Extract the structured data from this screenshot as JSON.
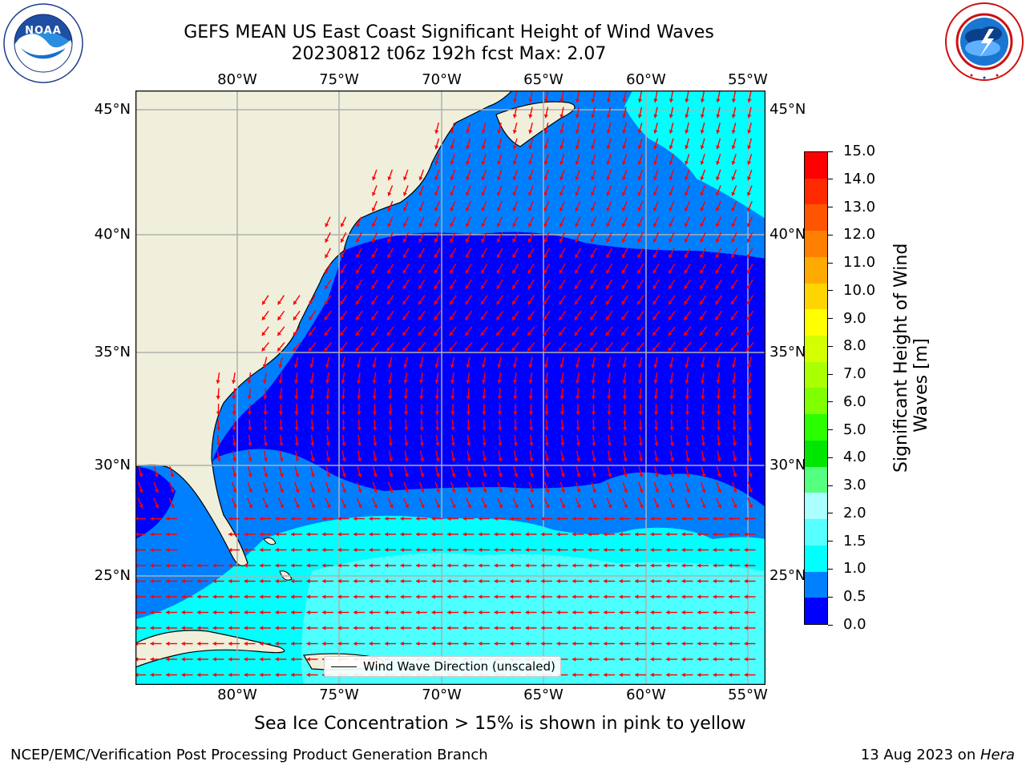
{
  "header": {
    "title_line1": "GEFS MEAN US East Coast Significant Height of Wind Waves",
    "title_line2": "20230812 t06z 192h fcst   Max: 2.07"
  },
  "logos": {
    "left": {
      "icon": "noaa-logo",
      "ring_text": "NATIONAL OCEANIC AND ATMOSPHERIC ADMINISTRATION · U.S. DEPARTMENT OF COMMERCE",
      "center_text": "NOAA"
    },
    "right": {
      "icon": "national-weather-service-logo",
      "ring_text": "NATIONAL WEATHER SERVICE"
    }
  },
  "map": {
    "lon_labels": [
      "80°W",
      "75°W",
      "70°W",
      "65°W",
      "60°W",
      "55°W"
    ],
    "lat_labels": [
      "45°N",
      "40°N",
      "35°N",
      "30°N",
      "25°N"
    ],
    "extent": {
      "lon_min": -85.0,
      "lon_max": -54.2,
      "lat_min": 20.5,
      "lat_max": 46.0
    },
    "arrow_color": "#ff0000",
    "land_color": "#efefdb",
    "gridlines": true,
    "legend_label": "Wind Wave Direction (unscaled)"
  },
  "colorbar": {
    "title_line1": "Significant Height of Wind",
    "title_line2": "Waves [m]",
    "labels": [
      "15.0",
      "14.0",
      "13.0",
      "12.0",
      "11.0",
      "10.0",
      "9.0",
      "8.0",
      "7.0",
      "6.0",
      "5.0",
      "4.0",
      "3.0",
      "2.0",
      "1.5",
      "1.0",
      "0.5",
      "0.0"
    ],
    "colors_top_to_bottom": [
      "#ff0000",
      "#ff2a00",
      "#ff5500",
      "#ff8000",
      "#ffaa00",
      "#ffd400",
      "#ffff00",
      "#d4ff00",
      "#aaff00",
      "#80ff00",
      "#2aff00",
      "#00e600",
      "#55ff80",
      "#aaffff",
      "#55ffff",
      "#00ffff",
      "#0080ff",
      "#0000ff"
    ]
  },
  "captions": {
    "sea_ice": "Sea Ice Concentration > 15% is shown in pink to yellow",
    "branch": "NCEP/EMC/Verification Post Processing Product Generation Branch",
    "date_prefix": "13 Aug 2023 on ",
    "machine": "Hera"
  }
}
